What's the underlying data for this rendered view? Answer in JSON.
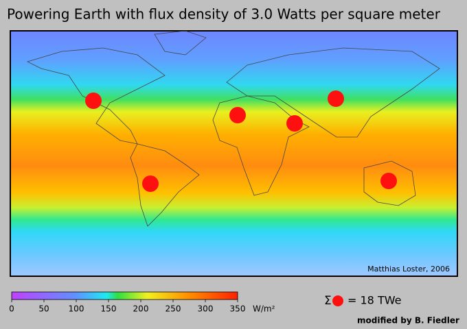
{
  "title": "Powering Earth with flux density of 3.0 Watts per square meter",
  "map": {
    "credit": "Matthias Loster, 2006"
  },
  "colorbar": {
    "lim": [
      0,
      350
    ],
    "ticks": [
      0,
      50,
      100,
      150,
      200,
      250,
      300,
      350
    ],
    "unit": "W/m²"
  },
  "legend": {
    "symbol": "Σ",
    "text": "= 18 TWe"
  },
  "footer": "modified by B. Fiedler"
}
